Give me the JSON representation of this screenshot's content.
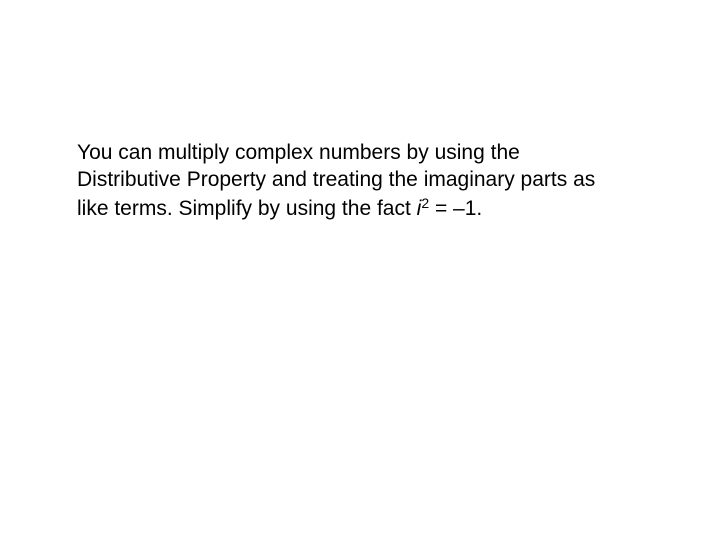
{
  "content": {
    "text_line1": "You can multiply complex numbers by using",
    "text_line2": "the Distributive Property and treating the",
    "text_line3": "imaginary parts as like terms. Simplify by",
    "text_line4_prefix": "using the fact ",
    "variable": "i",
    "exponent": "2",
    "equation_suffix": " = –1.",
    "font_size": 21,
    "font_family": "Verdana",
    "text_color": "#000000",
    "background_color": "#ffffff"
  }
}
